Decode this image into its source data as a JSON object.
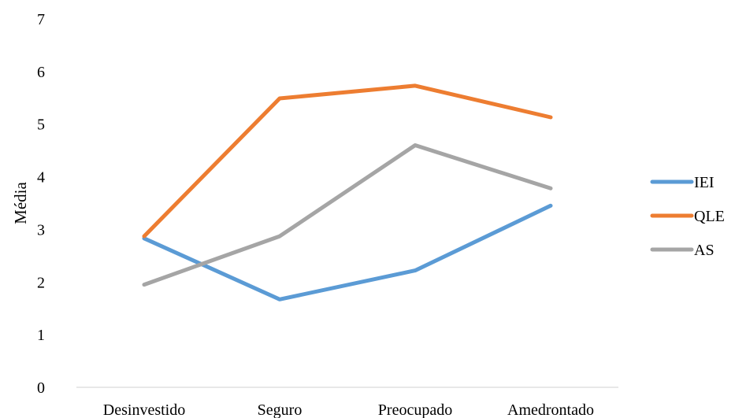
{
  "chart_data": {
    "type": "line",
    "title": "",
    "xlabel": "",
    "ylabel": "Média",
    "ylim": [
      0,
      7
    ],
    "yticks": [
      0,
      1,
      2,
      3,
      4,
      5,
      6,
      7
    ],
    "grid": false,
    "legend_position": "right",
    "categories": [
      "Desinvestido",
      "Seguro",
      "Preocupado",
      "Amedrontado"
    ],
    "series": [
      {
        "name": "IEI",
        "color": "#5B9BD5",
        "values": [
          2.83,
          1.67,
          2.22,
          3.45
        ]
      },
      {
        "name": "QLE",
        "color": "#ED7D31",
        "values": [
          2.87,
          5.49,
          5.73,
          5.13
        ]
      },
      {
        "name": "AS",
        "color": "#A5A5A5",
        "values": [
          1.95,
          2.87,
          4.6,
          3.78
        ]
      }
    ]
  }
}
